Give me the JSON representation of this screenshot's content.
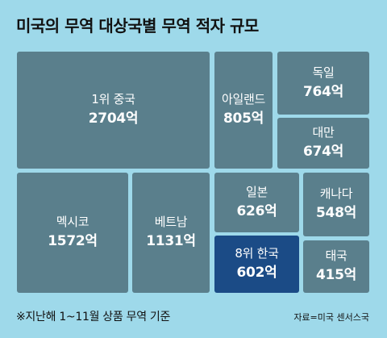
{
  "title": "미국의 무역 대상국별 무역 적자 규모",
  "footnote": "※지난해 1~11월 상품 무역 기준",
  "source": "자료=미국 센서스국",
  "colors": {
    "background": "#9ed9ea",
    "cell": "#5a7f8c",
    "highlight": "#1b4b86",
    "text": "#ffffff"
  },
  "chart_data": {
    "type": "treemap",
    "unit": "억",
    "items": [
      {
        "label": "1위 중국",
        "value_text": "2704억",
        "value": 2704
      },
      {
        "label": "아일랜드",
        "value_text": "805억",
        "value": 805
      },
      {
        "label": "독일",
        "value_text": "764억",
        "value": 764
      },
      {
        "label": "대만",
        "value_text": "674억",
        "value": 674
      },
      {
        "label": "멕시코",
        "value_text": "1572억",
        "value": 1572
      },
      {
        "label": "베트남",
        "value_text": "1131억",
        "value": 1131
      },
      {
        "label": "일본",
        "value_text": "626억",
        "value": 626
      },
      {
        "label": "캐나다",
        "value_text": "548억",
        "value": 548
      },
      {
        "label": "8위 한국",
        "value_text": "602억",
        "value": 602,
        "highlight": true
      },
      {
        "label": "태국",
        "value_text": "415억",
        "value": 415
      }
    ]
  }
}
